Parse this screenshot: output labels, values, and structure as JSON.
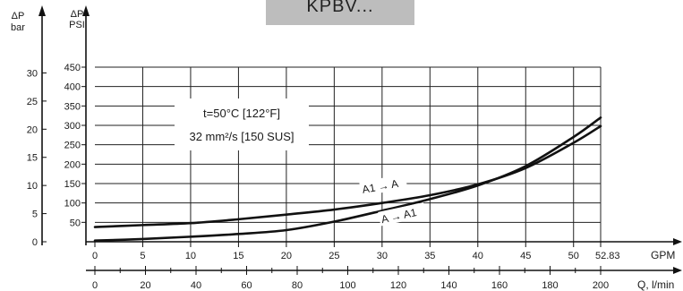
{
  "title": "KPBV...",
  "chart_data": {
    "type": "line",
    "left_axis_bar": {
      "label_line1": "ΔP",
      "label_line2": "bar",
      "ticks": [
        "0",
        "5",
        "10",
        "15",
        "20",
        "25",
        "30"
      ],
      "ylim": [
        0,
        31.03
      ]
    },
    "left_axis_psi": {
      "label_line1": "ΔP",
      "label_line2": "PSI",
      "ticks": [
        "50",
        "100",
        "150",
        "200",
        "250",
        "300",
        "350",
        "400",
        "450"
      ],
      "ylim": [
        0,
        450
      ]
    },
    "x_axis_gpm": {
      "label": "GPM",
      "ticks": [
        "0",
        "5",
        "10",
        "15",
        "20",
        "25",
        "30",
        "35",
        "40",
        "45",
        "50",
        "52.83"
      ],
      "xlim": [
        0,
        52.83
      ]
    },
    "x_axis_lmin": {
      "label": "Q, l/min",
      "ticks": [
        "0",
        "20",
        "40",
        "60",
        "80",
        "100",
        "120",
        "140",
        "160",
        "180",
        "200"
      ],
      "xlim": [
        0,
        200
      ]
    },
    "grid": true,
    "annotations": {
      "temperature": "t=50°C [122°F]",
      "viscosity": "32 mm²/s [150 SUS]"
    },
    "series": [
      {
        "name": "A1 → A",
        "x": [
          0,
          5,
          10,
          15,
          20,
          25,
          30,
          35,
          40,
          45,
          50,
          52.83
        ],
        "y": [
          38,
          43,
          48,
          58,
          70,
          83,
          100,
          120,
          148,
          190,
          255,
          298
        ]
      },
      {
        "name": "A → A1",
        "x": [
          0,
          5,
          10,
          15,
          20,
          25,
          30,
          35,
          40,
          45,
          50,
          52.83
        ],
        "y": [
          3,
          7,
          13,
          20,
          30,
          52,
          80,
          110,
          145,
          195,
          270,
          320
        ]
      }
    ]
  }
}
